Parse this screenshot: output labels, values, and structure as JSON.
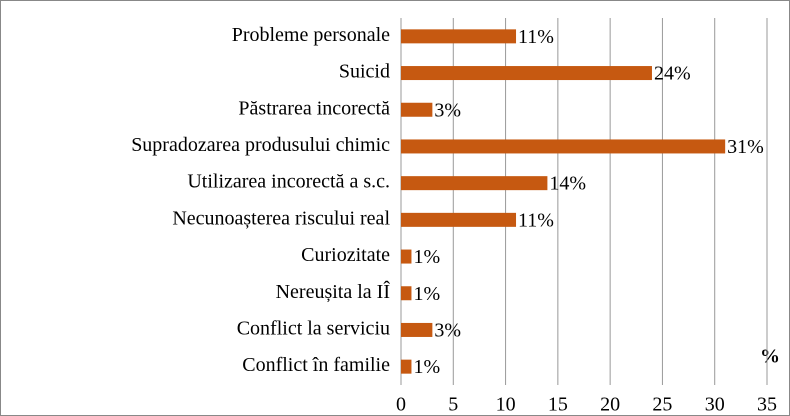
{
  "chart_data": {
    "type": "hbar",
    "categories": [
      "Probleme personale",
      "Suicid",
      "Păstrarea incorectă",
      "Supradozarea produsului chimic",
      "Utilizarea incorectă a s.c.",
      "Necunoașterea riscului real",
      "Curiozitate",
      "Nereușita la IÎ",
      "Conflict la serviciu",
      "Conflict în familie"
    ],
    "values": [
      11,
      24,
      3,
      31,
      14,
      11,
      1,
      1,
      3,
      1
    ],
    "value_labels": [
      "11%",
      "24%",
      "3%",
      "31%",
      "14%",
      "11%",
      "1%",
      "1%",
      "3%",
      "1%"
    ],
    "color": "#c65911",
    "xlabel": "%",
    "xlim": [
      0,
      35
    ],
    "xticks": [
      0,
      5,
      10,
      15,
      20,
      25,
      30,
      35
    ],
    "grid": true
  }
}
